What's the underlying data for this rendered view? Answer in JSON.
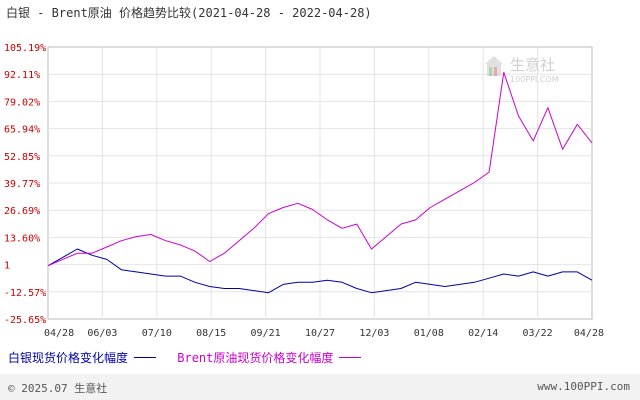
{
  "title": "白银 - Brent原油 价格趋势比较(2021-04-28 - 2022-04-28)",
  "watermark": {
    "name": "生意社",
    "url": "100PPI.COM"
  },
  "footer": {
    "copyright": "© 2025.07 生意社",
    "site": "www.100PPI.com"
  },
  "colors": {
    "silver": "#0000aa",
    "brent": "#cc00cc",
    "yAxisText": "#cc0000",
    "grid": "#e4e4e4"
  },
  "chart_data": {
    "type": "line",
    "ylim": [
      -25.65,
      105.19
    ],
    "y_tick_labels": [
      "105.19%",
      "92.11%",
      "79.02%",
      "65.94%",
      "52.85%",
      "39.77%",
      "26.69%",
      "13.60%",
      "1",
      "-12.57%",
      "-25.65%"
    ],
    "x_tick_labels": [
      "04/28",
      "06/03",
      "07/10",
      "08/15",
      "09/21",
      "10/27",
      "12/03",
      "01/08",
      "02/14",
      "03/22",
      "04/28"
    ],
    "x": [
      "04/28",
      "05/08",
      "05/18",
      "05/28",
      "06/07",
      "06/17",
      "06/27",
      "07/07",
      "07/17",
      "07/27",
      "08/06",
      "08/16",
      "08/26",
      "09/05",
      "09/15",
      "09/25",
      "10/05",
      "10/15",
      "10/25",
      "11/04",
      "11/14",
      "11/24",
      "12/04",
      "12/14",
      "12/24",
      "01/03",
      "01/13",
      "01/23",
      "02/02",
      "02/12",
      "02/22",
      "03/04",
      "03/14",
      "03/24",
      "04/03",
      "04/13",
      "04/23",
      "04/28"
    ],
    "series": [
      {
        "name": "白银现货价格变化幅度",
        "values": [
          0,
          4,
          8,
          5,
          3,
          -2,
          -3,
          -4,
          -5,
          -5,
          -8,
          -10,
          -11,
          -11,
          -12,
          -13,
          -9,
          -8,
          -8,
          -7,
          -8,
          -11,
          -13,
          -12,
          -11,
          -8,
          -9,
          -10,
          -9,
          -8,
          -6,
          -4,
          -5,
          -3,
          -5,
          -3,
          -3,
          -7
        ]
      },
      {
        "name": "Brent原油现货价格变化幅度",
        "values": [
          0,
          3,
          6,
          6,
          9,
          12,
          14,
          15,
          12,
          10,
          7,
          2,
          6,
          12,
          18,
          25,
          28,
          30,
          27,
          22,
          18,
          20,
          8,
          14,
          20,
          22,
          28,
          32,
          36,
          40,
          45,
          93,
          72,
          60,
          76,
          56,
          68,
          59
        ]
      }
    ]
  }
}
